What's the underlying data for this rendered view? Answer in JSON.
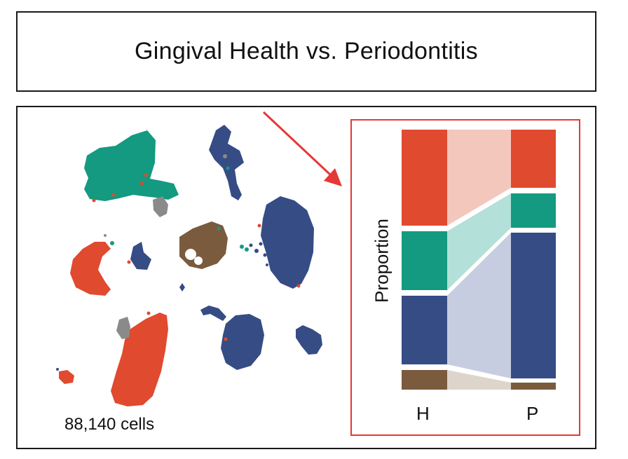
{
  "title": "Gingival Health vs. Periodontitis",
  "cells_label": "88,140 cells",
  "colors": {
    "red": "#e04a2f",
    "teal": "#139a80",
    "navy": "#364c85",
    "brown": "#7a5b3e",
    "gray": "#8a8a8a",
    "red_flow": "#f4c7bd",
    "teal_flow": "#b3e0d8",
    "navy_flow": "#c7cde0",
    "brown_flow": "#ddd5cc",
    "inset_border": "#e53935",
    "arrow": "#e53935"
  },
  "chart_data": {
    "type": "alluvial",
    "ylabel": "Proportion",
    "categories": [
      "H",
      "P"
    ]
  }
}
